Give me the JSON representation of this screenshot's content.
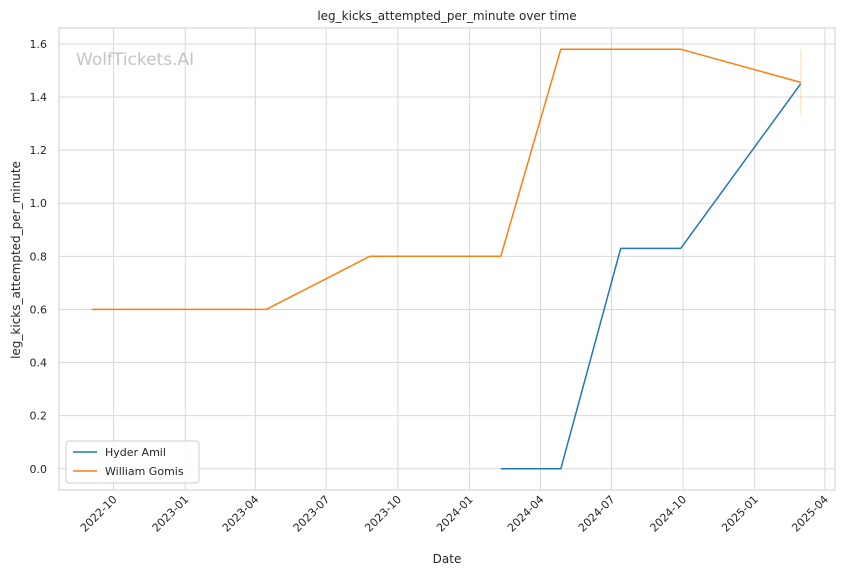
{
  "chart_data": {
    "type": "line",
    "title": "leg_kicks_attempted_per_minute over time",
    "xlabel": "Date",
    "ylabel": "leg_kicks_attempted_per_minute",
    "watermark": "WolfTickets.AI",
    "x_ticks": [
      "2022-10",
      "2023-01",
      "2023-04",
      "2023-07",
      "2023-10",
      "2024-01",
      "2024-04",
      "2024-07",
      "2024-10",
      "2025-01",
      "2025-04"
    ],
    "y_ticks": [
      "0.0",
      "0.2",
      "0.4",
      "0.6",
      "0.8",
      "1.0",
      "1.2",
      "1.4",
      "1.6"
    ],
    "xlim": [
      "2022-07-23",
      "2025-04-14"
    ],
    "ylim": [
      -0.08,
      1.66
    ],
    "grid": true,
    "legend_position": "lower-left",
    "series": [
      {
        "name": "Hyder Amil",
        "color": "#1f77b4",
        "points": [
          {
            "x": "2024-02-10",
            "y": 0.0
          },
          {
            "x": "2024-04-27",
            "y": 0.0
          },
          {
            "x": "2024-07-13",
            "y": 0.83
          },
          {
            "x": "2024-09-28",
            "y": 0.83
          },
          {
            "x": "2025-03-01",
            "y": 1.45
          }
        ]
      },
      {
        "name": "William Gomis",
        "color": "#ff7f0e",
        "points": [
          {
            "x": "2022-09-03",
            "y": 0.6
          },
          {
            "x": "2023-04-15",
            "y": 0.6
          },
          {
            "x": "2023-08-26",
            "y": 0.8
          },
          {
            "x": "2024-02-10",
            "y": 0.8
          },
          {
            "x": "2024-04-27",
            "y": 1.58
          },
          {
            "x": "2024-09-28",
            "y": 1.58
          },
          {
            "x": "2025-03-01",
            "y": 1.455
          }
        ]
      }
    ]
  }
}
